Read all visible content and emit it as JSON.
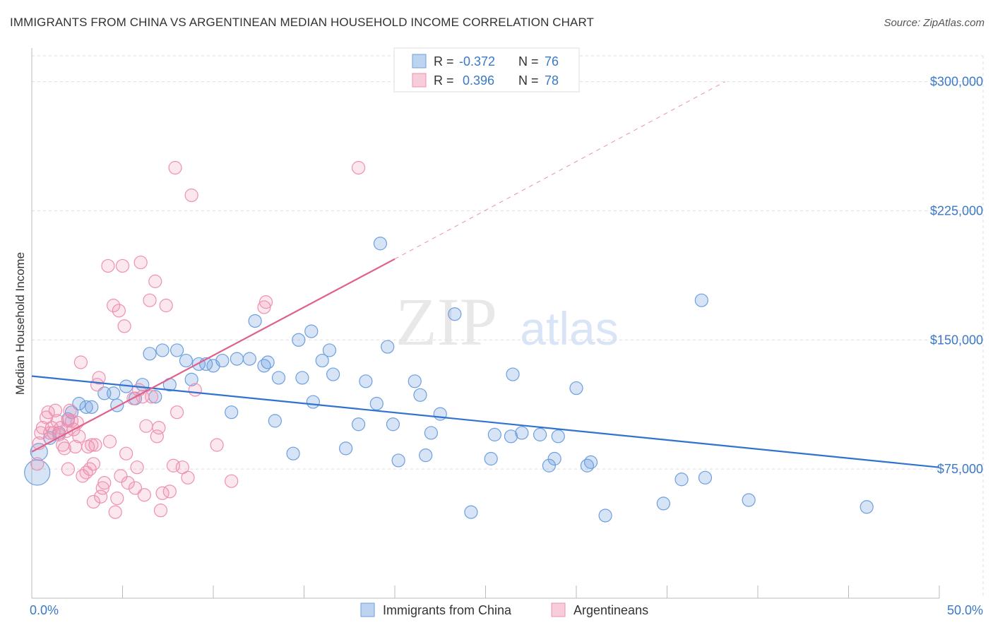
{
  "title": "IMMIGRANTS FROM CHINA VS ARGENTINEAN MEDIAN HOUSEHOLD INCOME CORRELATION CHART",
  "source": "Source: ZipAtlas.com",
  "watermark": {
    "zip": "ZIP",
    "atlas": "atlas"
  },
  "colors": {
    "china": "#6d9fe0",
    "china_fill": "rgba(109,159,224,0.28)",
    "china_line": "#2f72d0",
    "arg": "#ef90b0",
    "arg_fill": "rgba(239,144,176,0.22)",
    "arg_line": "#e0608c",
    "tick_label": "#3a78c8",
    "grid": "#dddddd"
  },
  "legend": {
    "rows": [
      {
        "r_label": "R =",
        "r_value": "-0.372",
        "n_label": "N =",
        "n_value": "76"
      },
      {
        "r_label": "R =",
        "r_value": " 0.396",
        "n_label": "N =",
        "n_value": "78"
      }
    ]
  },
  "bottom_legend": {
    "china": "Immigrants from China",
    "arg": "Argentineans"
  },
  "chart_data": {
    "type": "scatter",
    "ylabel": "Median Household Income",
    "x_tick_labels": [
      "0.0%",
      "50.0%"
    ],
    "y_tick_labels": [
      "$75,000",
      "$150,000",
      "$225,000",
      "$300,000"
    ],
    "y_ticks": [
      75000,
      150000,
      225000,
      300000
    ],
    "xlim": [
      0,
      50
    ],
    "ylim": [
      0,
      315000
    ],
    "grid": true,
    "legend_position": "top-center",
    "series": [
      {
        "name": "Immigrants from China",
        "key": "china",
        "trend": {
          "x0": 0,
          "y0": 129000,
          "x1": 50,
          "y1": 76000
        },
        "points": [
          [
            0.3,
            73000,
            18
          ],
          [
            0.4,
            85000,
            12
          ],
          [
            1.0,
            93000,
            9
          ],
          [
            1.5,
            96000,
            9
          ],
          [
            2.0,
            104000,
            9
          ],
          [
            2.2,
            108000,
            9
          ],
          [
            2.6,
            113000,
            9
          ],
          [
            3.0,
            111000,
            9
          ],
          [
            3.3,
            111000,
            9
          ],
          [
            4.5,
            119000,
            9
          ],
          [
            4.0,
            119000,
            9
          ],
          [
            4.7,
            112000,
            9
          ],
          [
            5.2,
            123000,
            9
          ],
          [
            5.7,
            116000,
            9
          ],
          [
            6.1,
            124000,
            9
          ],
          [
            6.5,
            142000,
            9
          ],
          [
            6.8,
            117000,
            9
          ],
          [
            7.2,
            144000,
            9
          ],
          [
            7.6,
            124000,
            9
          ],
          [
            8.0,
            144000,
            9
          ],
          [
            8.5,
            138000,
            9
          ],
          [
            8.8,
            127000,
            9
          ],
          [
            9.2,
            136000,
            9
          ],
          [
            9.6,
            136000,
            9
          ],
          [
            10.0,
            135000,
            9
          ],
          [
            10.5,
            138000,
            9
          ],
          [
            11.0,
            108000,
            9
          ],
          [
            11.3,
            139000,
            9
          ],
          [
            12.0,
            139000,
            9
          ],
          [
            12.3,
            161000,
            9
          ],
          [
            12.8,
            135000,
            9
          ],
          [
            13.0,
            137000,
            9
          ],
          [
            13.4,
            103000,
            9
          ],
          [
            13.6,
            128000,
            9
          ],
          [
            14.4,
            84000,
            9
          ],
          [
            14.7,
            150000,
            9
          ],
          [
            14.9,
            128000,
            9
          ],
          [
            15.4,
            155000,
            9
          ],
          [
            15.5,
            114000,
            9
          ],
          [
            16.0,
            138000,
            9
          ],
          [
            16.4,
            144000,
            9
          ],
          [
            16.6,
            130000,
            9
          ],
          [
            17.3,
            87000,
            9
          ],
          [
            18.0,
            101000,
            9
          ],
          [
            18.4,
            126000,
            9
          ],
          [
            19.0,
            113000,
            9
          ],
          [
            19.2,
            206000,
            9
          ],
          [
            19.6,
            146000,
            9
          ],
          [
            19.9,
            101000,
            9
          ],
          [
            20.2,
            80000,
            9
          ],
          [
            21.1,
            126000,
            9
          ],
          [
            21.4,
            118000,
            9
          ],
          [
            21.7,
            83000,
            9
          ],
          [
            22.0,
            96000,
            9
          ],
          [
            22.5,
            107000,
            9
          ],
          [
            23.3,
            165000,
            9
          ],
          [
            24.2,
            50000,
            9
          ],
          [
            25.3,
            81000,
            9
          ],
          [
            25.5,
            95000,
            9
          ],
          [
            26.5,
            130000,
            9
          ],
          [
            26.4,
            94000,
            9
          ],
          [
            27.0,
            96000,
            9
          ],
          [
            28.0,
            95000,
            9
          ],
          [
            28.5,
            77000,
            9
          ],
          [
            28.8,
            81000,
            9
          ],
          [
            29.0,
            94000,
            9
          ],
          [
            30.0,
            122000,
            9
          ],
          [
            30.6,
            77000,
            9
          ],
          [
            30.8,
            79000,
            9
          ],
          [
            31.6,
            48000,
            9
          ],
          [
            34.8,
            55000,
            9
          ],
          [
            35.8,
            69000,
            9
          ],
          [
            36.9,
            173000,
            9
          ],
          [
            37.1,
            70000,
            9
          ],
          [
            39.5,
            57000,
            9
          ],
          [
            46.0,
            53000,
            9
          ]
        ]
      },
      {
        "name": "Argentineans",
        "key": "arg",
        "trend": {
          "x0": 0,
          "y0": 85000,
          "x1": 20.0,
          "y1": 197000,
          "dash_x1": 38.2,
          "dash_y1": 300000
        },
        "points": [
          [
            0.3,
            78000,
            9
          ],
          [
            0.4,
            90000,
            9
          ],
          [
            0.5,
            96000,
            9
          ],
          [
            0.6,
            99000,
            9
          ],
          [
            0.8,
            105000,
            9
          ],
          [
            0.9,
            108000,
            9
          ],
          [
            1.0,
            96000,
            9
          ],
          [
            1.1,
            99000,
            9
          ],
          [
            1.3,
            109000,
            9
          ],
          [
            1.4,
            103000,
            9
          ],
          [
            1.5,
            95000,
            9
          ],
          [
            1.6,
            99000,
            9
          ],
          [
            1.7,
            89000,
            9
          ],
          [
            1.8,
            87000,
            9
          ],
          [
            1.9,
            97000,
            9
          ],
          [
            2.0,
            75000,
            9
          ],
          [
            2.0,
            103000,
            9
          ],
          [
            2.1,
            109000,
            9
          ],
          [
            2.3,
            98000,
            9
          ],
          [
            2.5,
            102000,
            9
          ],
          [
            2.6,
            94000,
            9
          ],
          [
            2.7,
            137000,
            9
          ],
          [
            2.8,
            71000,
            9
          ],
          [
            3.0,
            73000,
            9
          ],
          [
            3.1,
            88000,
            9
          ],
          [
            3.2,
            75000,
            9
          ],
          [
            3.3,
            89000,
            9
          ],
          [
            3.4,
            56000,
            9
          ],
          [
            3.4,
            78000,
            9
          ],
          [
            3.5,
            89000,
            9
          ],
          [
            3.6,
            124000,
            9
          ],
          [
            3.7,
            128000,
            9
          ],
          [
            3.8,
            59000,
            9
          ],
          [
            3.9,
            64000,
            9
          ],
          [
            4.0,
            67000,
            9
          ],
          [
            4.2,
            193000,
            9
          ],
          [
            4.3,
            91000,
            9
          ],
          [
            4.5,
            170000,
            9
          ],
          [
            4.6,
            50000,
            9
          ],
          [
            4.7,
            58000,
            9
          ],
          [
            4.8,
            167000,
            9
          ],
          [
            5.0,
            193000,
            9
          ],
          [
            5.1,
            158000,
            9
          ],
          [
            5.2,
            84000,
            9
          ],
          [
            5.3,
            67000,
            9
          ],
          [
            5.6,
            116000,
            9
          ],
          [
            5.7,
            64000,
            9
          ],
          [
            5.8,
            76000,
            9
          ],
          [
            5.9,
            121000,
            9
          ],
          [
            6.0,
            195000,
            9
          ],
          [
            6.1,
            117000,
            9
          ],
          [
            6.2,
            60000,
            9
          ],
          [
            6.3,
            100000,
            9
          ],
          [
            6.5,
            173000,
            9
          ],
          [
            6.6,
            117000,
            9
          ],
          [
            6.8,
            184000,
            9
          ],
          [
            6.9,
            94000,
            9
          ],
          [
            7.0,
            99000,
            9
          ],
          [
            7.1,
            51000,
            9
          ],
          [
            7.2,
            61000,
            9
          ],
          [
            7.4,
            170000,
            9
          ],
          [
            7.6,
            62000,
            9
          ],
          [
            7.8,
            77000,
            9
          ],
          [
            7.9,
            250000,
            9
          ],
          [
            8.0,
            108000,
            9
          ],
          [
            8.3,
            76000,
            9
          ],
          [
            8.6,
            70000,
            9
          ],
          [
            8.8,
            234000,
            9
          ],
          [
            9.0,
            121000,
            9
          ],
          [
            10.2,
            89000,
            9
          ],
          [
            11.0,
            68000,
            9
          ],
          [
            12.8,
            169000,
            9
          ],
          [
            12.9,
            172000,
            9
          ],
          [
            18.0,
            250000,
            9
          ],
          [
            4.9,
            71000,
            9
          ],
          [
            2.2,
            103000,
            9
          ],
          [
            1.2,
            96000,
            9
          ],
          [
            2.4,
            88000,
            9
          ]
        ]
      }
    ]
  }
}
